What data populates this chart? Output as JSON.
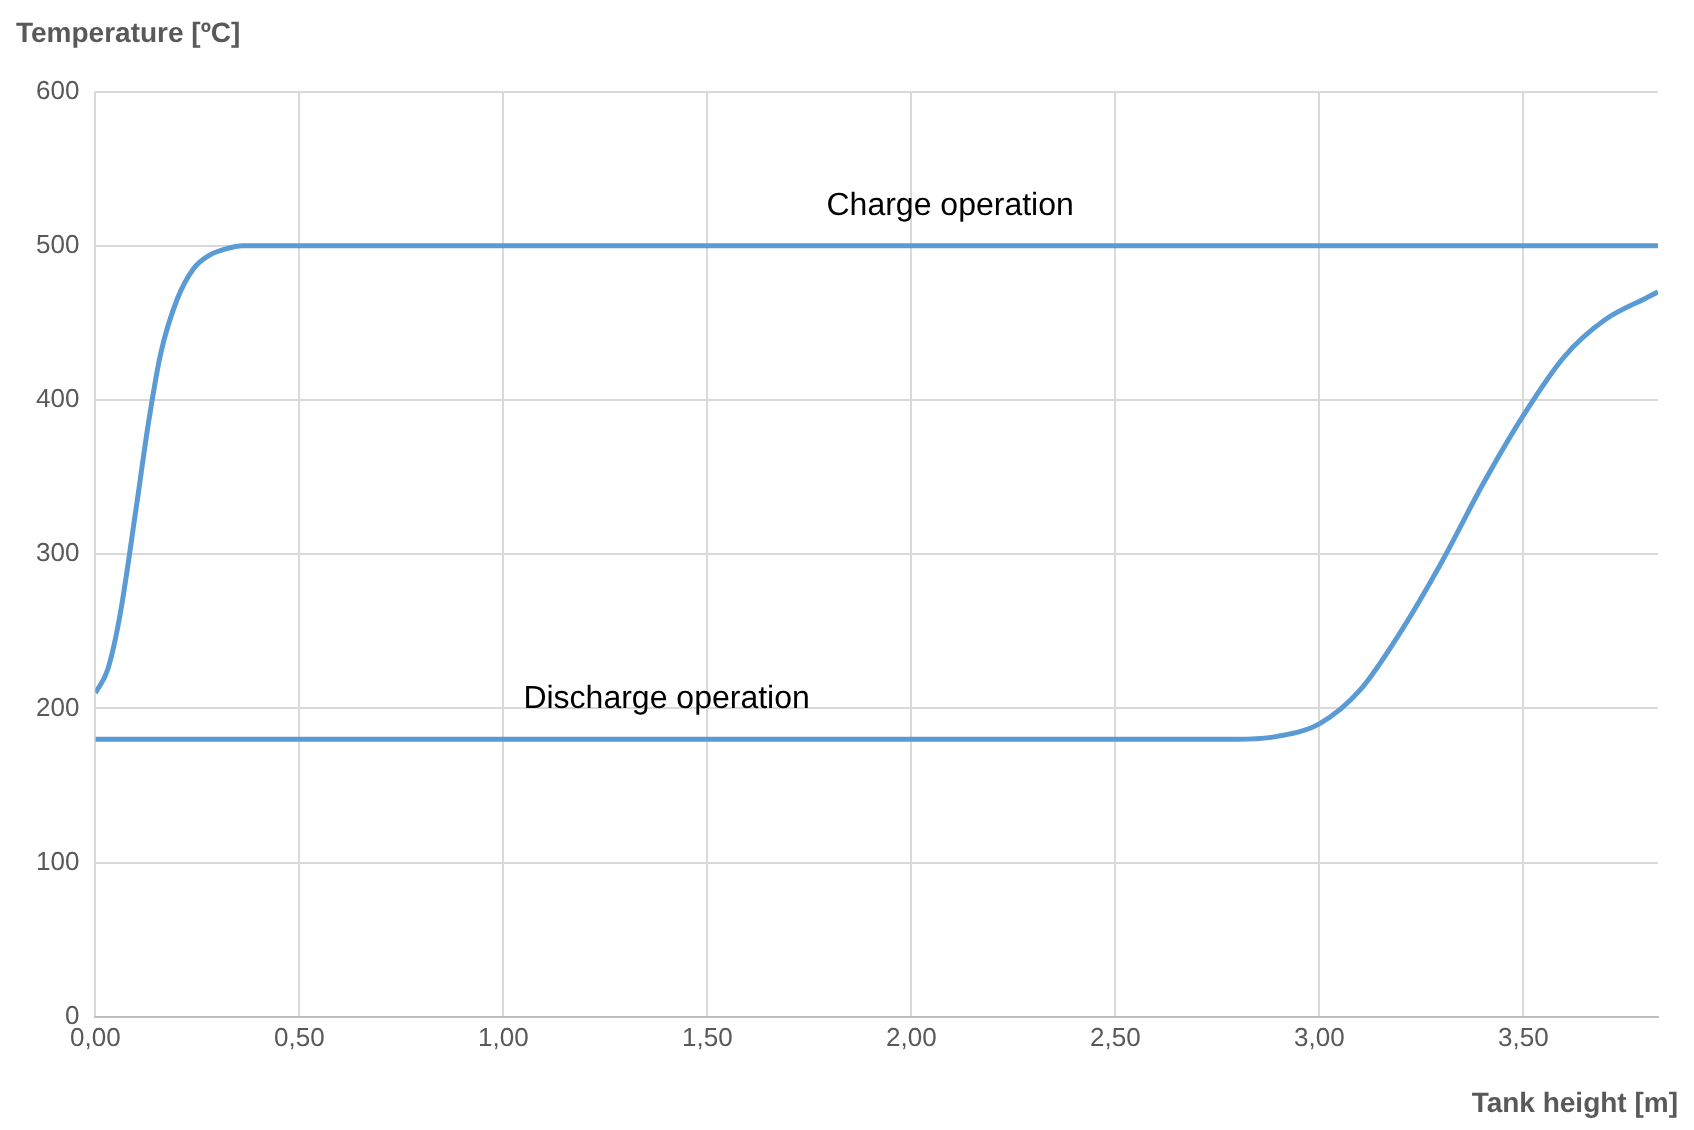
{
  "chart_data": {
    "type": "line",
    "xlabel": "Tank height [m]",
    "ylabel": "Temperature [ºC]",
    "xlim": [
      0,
      3.83
    ],
    "ylim": [
      0,
      600
    ],
    "xticks": [
      {
        "value": 0,
        "label": "0,00"
      },
      {
        "value": 0.5,
        "label": "0,50"
      },
      {
        "value": 1,
        "label": "1,00"
      },
      {
        "value": 1.5,
        "label": "1,50"
      },
      {
        "value": 2,
        "label": "2,00"
      },
      {
        "value": 2.5,
        "label": "2,50"
      },
      {
        "value": 3,
        "label": "3,00"
      },
      {
        "value": 3.5,
        "label": "3,50"
      }
    ],
    "yticks": [
      0,
      100,
      200,
      300,
      400,
      500,
      600
    ],
    "grid": true,
    "legend": false,
    "marker": "none",
    "line_style": "solid",
    "series": [
      {
        "name": "Charge operation",
        "color": "#5b9bd5",
        "x": [
          0,
          0.03,
          0.06,
          0.1,
          0.13,
          0.16,
          0.2,
          0.24,
          0.28,
          0.32,
          0.36,
          0.4,
          0.5,
          1,
          2,
          3,
          3.83
        ],
        "values": [
          210,
          225,
          260,
          330,
          385,
          430,
          465,
          485,
          494,
          498,
          500,
          500,
          500,
          500,
          500,
          500,
          500
        ]
      },
      {
        "name": "Discharge operation",
        "color": "#5b9bd5",
        "x": [
          0,
          1,
          2,
          2.8,
          2.9,
          3,
          3.1,
          3.2,
          3.3,
          3.4,
          3.5,
          3.6,
          3.7,
          3.8,
          3.83
        ],
        "values": [
          180,
          180,
          180,
          180,
          182,
          190,
          212,
          250,
          295,
          345,
          390,
          428,
          452,
          466,
          470
        ]
      }
    ]
  }
}
